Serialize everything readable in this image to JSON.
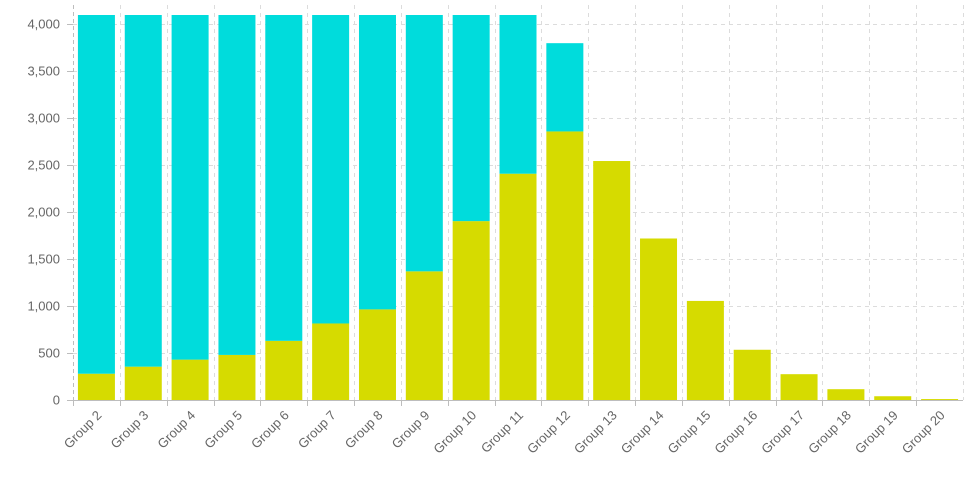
{
  "chart_data": {
    "type": "bar",
    "stacked": true,
    "title": "",
    "xlabel": "",
    "ylabel": "",
    "categories": [
      "Group 2",
      "Group 3",
      "Group 4",
      "Group 5",
      "Group 6",
      "Group 7",
      "Group 8",
      "Group 9",
      "Group 10",
      "Group 11",
      "Group 12",
      "Group 13",
      "Group 14",
      "Group 15",
      "Group 16",
      "Group 17",
      "Group 18",
      "Group 19",
      "Group 20"
    ],
    "series": [
      {
        "color": "#d6db00",
        "values": [
          280,
          355,
          430,
          480,
          630,
          815,
          965,
          1370,
          1905,
          2410,
          2860,
          2545,
          1720,
          1055,
          535,
          275,
          115,
          40,
          10
        ]
      },
      {
        "color": "#00dcdc",
        "values": [
          3820,
          3745,
          3670,
          3620,
          3470,
          3285,
          3135,
          2730,
          2195,
          1690,
          940,
          0,
          0,
          0,
          0,
          0,
          0,
          0,
          0
        ]
      }
    ],
    "ylim": [
      0,
      4100
    ],
    "yticks": [
      0,
      500,
      1000,
      1500,
      2000,
      2500,
      3000,
      3500,
      4000
    ],
    "ytick_labels": [
      "0",
      "500",
      "1,000",
      "1,500",
      "2,000",
      "2,500",
      "3,000",
      "3,500",
      "4,000"
    ],
    "grid": true,
    "legend": "none"
  }
}
